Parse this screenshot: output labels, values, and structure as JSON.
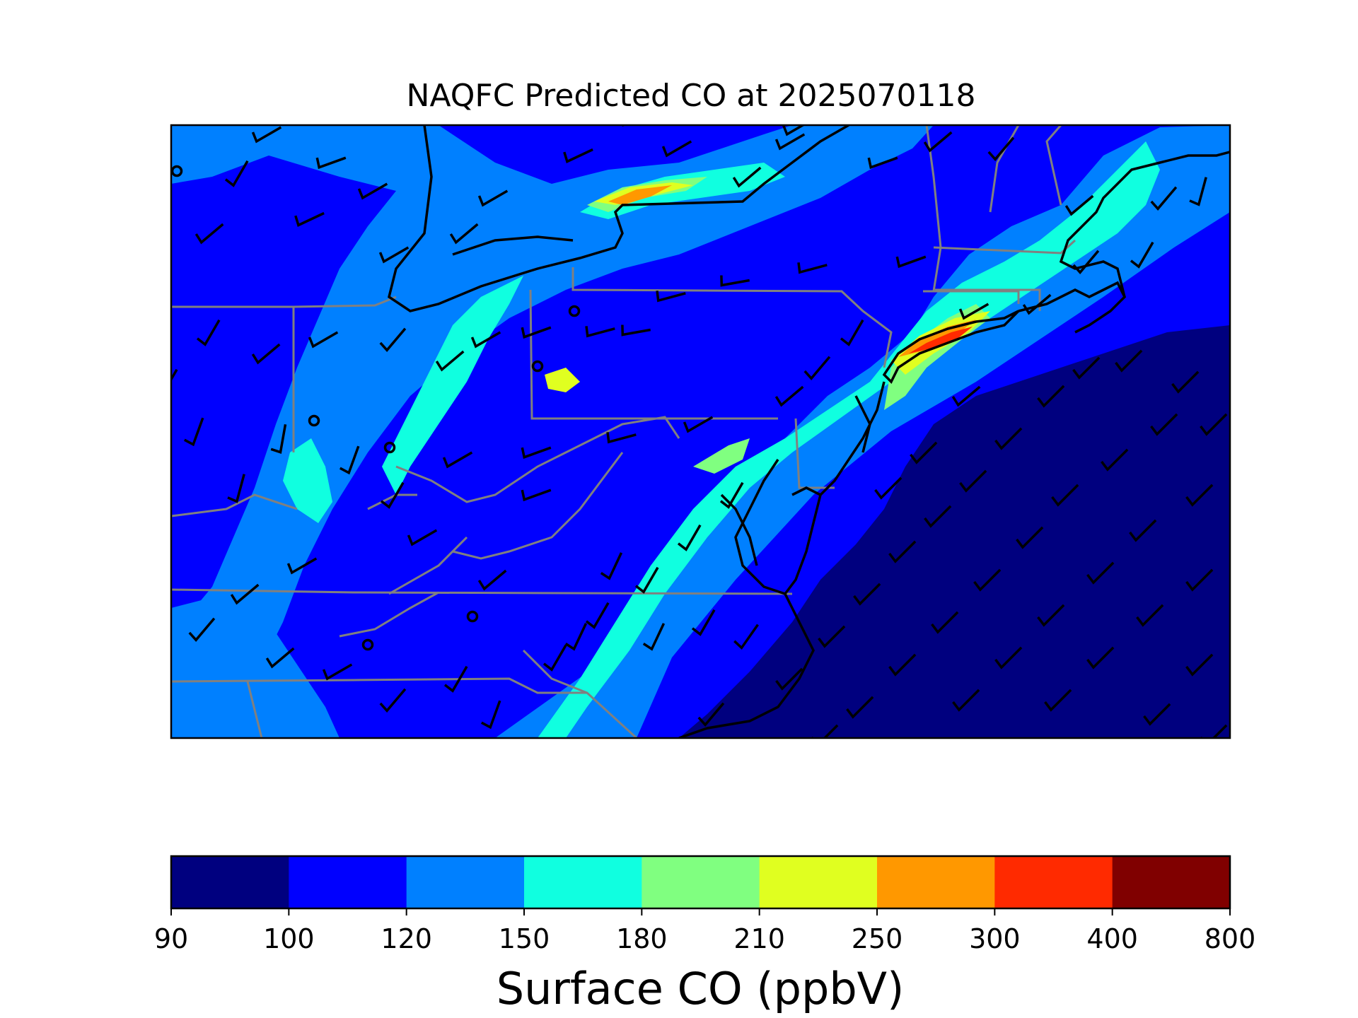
{
  "title": "NAQFC Predicted CO at 2025070118",
  "colorbar": {
    "label": "Surface CO (ppbV)",
    "ticks": [
      "90",
      "100",
      "120",
      "150",
      "180",
      "210",
      "250",
      "300",
      "400",
      "800"
    ],
    "levels": [
      {
        "from": 90,
        "to": 100,
        "color": "#00007f"
      },
      {
        "from": 100,
        "to": 120,
        "color": "#0000ff"
      },
      {
        "from": 120,
        "to": 150,
        "color": "#0080ff"
      },
      {
        "from": 150,
        "to": 180,
        "color": "#10ffe0"
      },
      {
        "from": 180,
        "to": 210,
        "color": "#80ff80"
      },
      {
        "from": 210,
        "to": 250,
        "color": "#e0ff20"
      },
      {
        "from": 250,
        "to": 300,
        "color": "#ff9800"
      },
      {
        "from": 300,
        "to": 400,
        "color": "#ff2a00"
      },
      {
        "from": 400,
        "to": 800,
        "color": "#800000"
      }
    ]
  },
  "map": {
    "background_level_color": "#0000ff",
    "ocean_color": "#00007f",
    "coast_color": "#000000",
    "border_color": "#808080"
  }
}
